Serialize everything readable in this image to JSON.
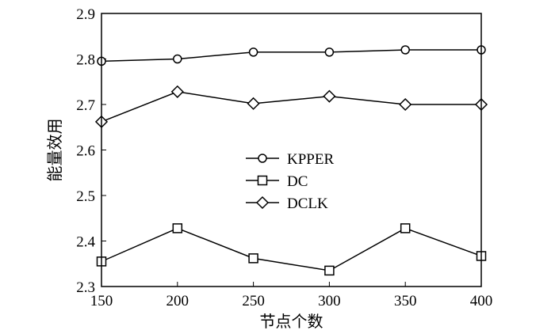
{
  "chart_data": {
    "type": "line",
    "title": "",
    "xlabel": "节点个数",
    "ylabel": "能量效用",
    "x": [
      150,
      200,
      250,
      300,
      350,
      400
    ],
    "xticks": [
      "150",
      "200",
      "250",
      "300",
      "350",
      "400"
    ],
    "xlim": [
      150,
      400
    ],
    "yticks": [
      "2.3",
      "2.4",
      "2.5",
      "2.6",
      "2.7",
      "2.8",
      "2.9"
    ],
    "ylim": [
      2.3,
      2.9
    ],
    "grid": false,
    "legend_position": "center",
    "series": [
      {
        "name": "KPPER",
        "marker": "circle",
        "values": [
          2.795,
          2.8,
          2.815,
          2.815,
          2.82,
          2.82
        ]
      },
      {
        "name": "DC",
        "marker": "square",
        "values": [
          2.355,
          2.428,
          2.362,
          2.335,
          2.428,
          2.367
        ]
      },
      {
        "name": "DCLK",
        "marker": "diamond",
        "values": [
          2.662,
          2.728,
          2.702,
          2.718,
          2.7,
          2.7
        ]
      }
    ]
  }
}
